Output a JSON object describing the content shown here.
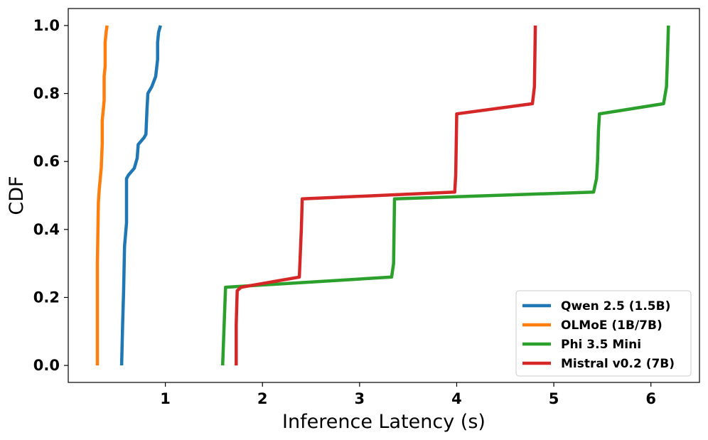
{
  "chart_data": {
    "type": "line",
    "title": "",
    "xlabel": "Inference Latency (s)",
    "ylabel": "CDF",
    "xlim": [
      0.0,
      6.5
    ],
    "ylim": [
      -0.05,
      1.05
    ],
    "xticks": [
      1,
      2,
      3,
      4,
      5,
      6
    ],
    "xtick_labels": [
      "1",
      "2",
      "3",
      "4",
      "5",
      "6"
    ],
    "yticks": [
      0.0,
      0.2,
      0.4,
      0.6,
      0.8,
      1.0
    ],
    "ytick_labels": [
      "0.0",
      "0.2",
      "0.4",
      "0.6",
      "0.8",
      "1.0"
    ],
    "grid": false,
    "legend_position": "lower-right",
    "series": [
      {
        "name": "Qwen 2.5 (1.5B)",
        "color": "#1f77b4",
        "x": [
          0.55,
          0.56,
          0.57,
          0.58,
          0.6,
          0.6,
          0.62,
          0.68,
          0.71,
          0.72,
          0.78,
          0.8,
          0.81,
          0.82,
          0.86,
          0.9,
          0.92,
          0.92,
          0.93,
          0.95
        ],
        "y": [
          0.0,
          0.12,
          0.22,
          0.35,
          0.42,
          0.55,
          0.56,
          0.58,
          0.61,
          0.65,
          0.67,
          0.68,
          0.75,
          0.8,
          0.82,
          0.85,
          0.9,
          0.95,
          0.98,
          1.0
        ]
      },
      {
        "name": "OLMoE (1B/7B)",
        "color": "#ff7f0e",
        "x": [
          0.3,
          0.3,
          0.31,
          0.32,
          0.34,
          0.35,
          0.35,
          0.36,
          0.37,
          0.37,
          0.38,
          0.38,
          0.39,
          0.4
        ],
        "y": [
          0.0,
          0.3,
          0.48,
          0.52,
          0.58,
          0.65,
          0.72,
          0.75,
          0.78,
          0.85,
          0.88,
          0.95,
          0.98,
          1.0
        ]
      },
      {
        "name": "Phi 3.5 Mini",
        "color": "#2ca02c",
        "x": [
          1.59,
          1.6,
          1.62,
          3.33,
          3.35,
          3.36,
          5.41,
          5.44,
          5.45,
          5.46,
          5.47,
          6.13,
          6.16,
          6.17,
          6.18
        ],
        "y": [
          0.0,
          0.08,
          0.23,
          0.26,
          0.3,
          0.49,
          0.51,
          0.55,
          0.6,
          0.69,
          0.74,
          0.77,
          0.82,
          0.9,
          1.0
        ]
      },
      {
        "name": "Mistral v0.2 (7B)",
        "color": "#d62728",
        "x": [
          1.73,
          1.73,
          1.74,
          1.78,
          2.38,
          2.4,
          2.41,
          3.98,
          3.99,
          4.0,
          4.78,
          4.8,
          4.81
        ],
        "y": [
          0.0,
          0.12,
          0.22,
          0.23,
          0.26,
          0.4,
          0.49,
          0.51,
          0.56,
          0.74,
          0.77,
          0.82,
          1.0
        ]
      }
    ]
  }
}
